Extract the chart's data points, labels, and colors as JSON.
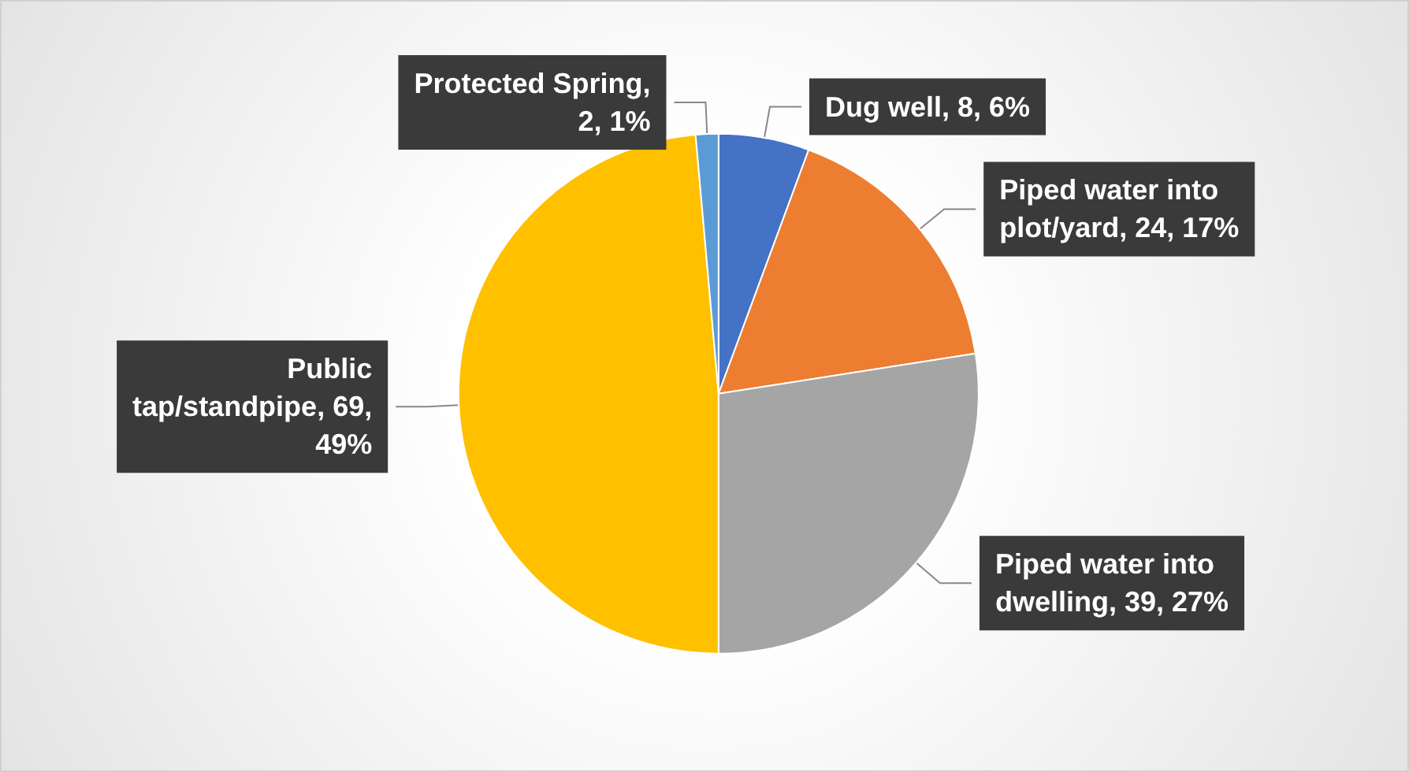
{
  "chart_data": {
    "type": "pie",
    "categories": [
      "Dug well",
      "Piped water into plot/yard",
      "Piped water into dwelling",
      "Public tap/standpipe",
      "Protected Spring"
    ],
    "values": [
      8,
      24,
      39,
      69,
      2
    ],
    "colors": [
      "#4472c4",
      "#ed7d31",
      "#a5a5a5",
      "#ffc000",
      "#5b9bd5"
    ],
    "value_labels": [
      ", 8, 6%",
      ", 24, 17%",
      ", 39, 27%",
      ", 69, 49%",
      ", 2, 1%"
    ],
    "legend": false
  }
}
